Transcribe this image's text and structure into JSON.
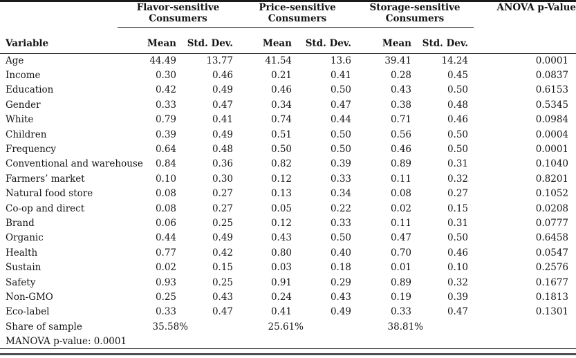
{
  "table": {
    "variable_header": "Variable",
    "anova_header": "ANOVA p-Value",
    "sub_headers": [
      "Mean",
      "Std. Dev."
    ],
    "groups": [
      {
        "line1": "Flavor-sensitive",
        "line2": "Consumers"
      },
      {
        "line1": "Price-sensitive",
        "line2": "Consumers"
      },
      {
        "line1": "Storage-sensitive",
        "line2": "Consumers"
      }
    ],
    "rows": [
      {
        "variable": "Age",
        "values": [
          "44.49",
          "13.77",
          "41.54",
          "13.6",
          "39.41",
          "14.24",
          "0.0001"
        ]
      },
      {
        "variable": "Income",
        "values": [
          "0.30",
          "0.46",
          "0.21",
          "0.41",
          "0.28",
          "0.45",
          "0.0837"
        ]
      },
      {
        "variable": "Education",
        "values": [
          "0.42",
          "0.49",
          "0.46",
          "0.50",
          "0.43",
          "0.50",
          "0.6153"
        ]
      },
      {
        "variable": "Gender",
        "values": [
          "0.33",
          "0.47",
          "0.34",
          "0.47",
          "0.38",
          "0.48",
          "0.5345"
        ]
      },
      {
        "variable": "White",
        "values": [
          "0.79",
          "0.41",
          "0.74",
          "0.44",
          "0.71",
          "0.46",
          "0.0984"
        ]
      },
      {
        "variable": "Children",
        "values": [
          "0.39",
          "0.49",
          "0.51",
          "0.50",
          "0.56",
          "0.50",
          "0.0004"
        ]
      },
      {
        "variable": "Frequency",
        "values": [
          "0.64",
          "0.48",
          "0.50",
          "0.50",
          "0.46",
          "0.50",
          "0.0001"
        ]
      },
      {
        "variable": "Conventional and warehouse",
        "values": [
          "0.84",
          "0.36",
          "0.82",
          "0.39",
          "0.89",
          "0.31",
          "0.1040"
        ]
      },
      {
        "variable": "Farmers’ market",
        "values": [
          "0.10",
          "0.30",
          "0.12",
          "0.33",
          "0.11",
          "0.32",
          "0.8201"
        ]
      },
      {
        "variable": "Natural food store",
        "values": [
          "0.08",
          "0.27",
          "0.13",
          "0.34",
          "0.08",
          "0.27",
          "0.1052"
        ]
      },
      {
        "variable": "Co-op and direct",
        "values": [
          "0.08",
          "0.27",
          "0.05",
          "0.22",
          "0.02",
          "0.15",
          "0.0208"
        ]
      },
      {
        "variable": "Brand",
        "values": [
          "0.06",
          "0.25",
          "0.12",
          "0.33",
          "0.11",
          "0.31",
          "0.0777"
        ]
      },
      {
        "variable": "Organic",
        "values": [
          "0.44",
          "0.49",
          "0.43",
          "0.50",
          "0.47",
          "0.50",
          "0.6458"
        ]
      },
      {
        "variable": "Health",
        "values": [
          "0.77",
          "0.42",
          "0.80",
          "0.40",
          "0.70",
          "0.46",
          "0.0547"
        ]
      },
      {
        "variable": "Sustain",
        "values": [
          "0.02",
          "0.15",
          "0.03",
          "0.18",
          "0.01",
          "0.10",
          "0.2576"
        ]
      },
      {
        "variable": "Safety",
        "values": [
          "0.93",
          "0.25",
          "0.91",
          "0.29",
          "0.89",
          "0.32",
          "0.1677"
        ]
      },
      {
        "variable": "Non-GMO",
        "values": [
          "0.25",
          "0.43",
          "0.24",
          "0.43",
          "0.19",
          "0.39",
          "0.1813"
        ]
      },
      {
        "variable": "Eco-label",
        "values": [
          "0.33",
          "0.47",
          "0.41",
          "0.49",
          "0.33",
          "0.47",
          "0.1301"
        ]
      }
    ],
    "share_row": {
      "label": "Share of sample",
      "values": [
        "35.58%",
        "",
        "25.61%",
        "",
        "38.81%",
        "",
        ""
      ]
    },
    "manova_note": "MANOVA p-value: 0.0001"
  }
}
